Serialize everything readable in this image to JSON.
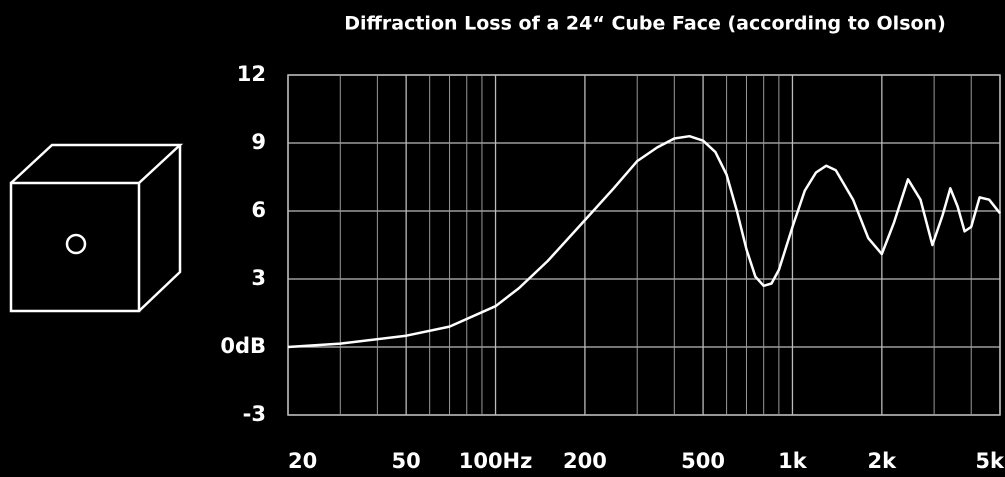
{
  "chart_data": {
    "type": "line",
    "title": "Diffraction Loss of a 24“ Cube Face (according to Olson)",
    "log_x": true,
    "grid": true,
    "color": "#ffffff",
    "xlim": [
      20,
      5000
    ],
    "xticks": [
      20,
      50,
      {
        "value": 100,
        "label": "100Hz"
      },
      200,
      500,
      {
        "value": 1000,
        "label": "1k"
      },
      {
        "value": 2000,
        "label": "2k"
      },
      {
        "value": 5000,
        "label": "5k"
      }
    ],
    "xminorticks": [
      30,
      40,
      60,
      70,
      80,
      90,
      300,
      400,
      600,
      700,
      800,
      900,
      3000,
      4000
    ],
    "ylim": [
      -3,
      12
    ],
    "yticks": [
      {
        "value": -3,
        "label": "-3"
      },
      {
        "value": 0,
        "label": "0dB"
      },
      3,
      6,
      9,
      12
    ],
    "x": [
      20,
      30,
      50,
      70,
      100,
      120,
      150,
      200,
      250,
      300,
      350,
      400,
      450,
      500,
      550,
      600,
      650,
      700,
      750,
      800,
      850,
      900,
      1000,
      1100,
      1200,
      1300,
      1400,
      1600,
      1800,
      2000,
      2200,
      2450,
      2700,
      2960,
      3200,
      3400,
      3600,
      3800,
      4000,
      4270,
      4600,
      5000
    ],
    "values": [
      0,
      0.15,
      0.5,
      0.9,
      1.8,
      2.6,
      3.8,
      5.6,
      7.0,
      8.2,
      8.8,
      9.2,
      9.3,
      9.1,
      8.6,
      7.6,
      6.0,
      4.3,
      3.1,
      2.7,
      2.8,
      3.4,
      5.3,
      6.9,
      7.7,
      8.0,
      7.8,
      6.5,
      4.8,
      4.1,
      5.5,
      7.4,
      6.5,
      4.5,
      5.8,
      7.0,
      6.2,
      5.1,
      5.3,
      6.6,
      6.5,
      5.9
    ]
  }
}
